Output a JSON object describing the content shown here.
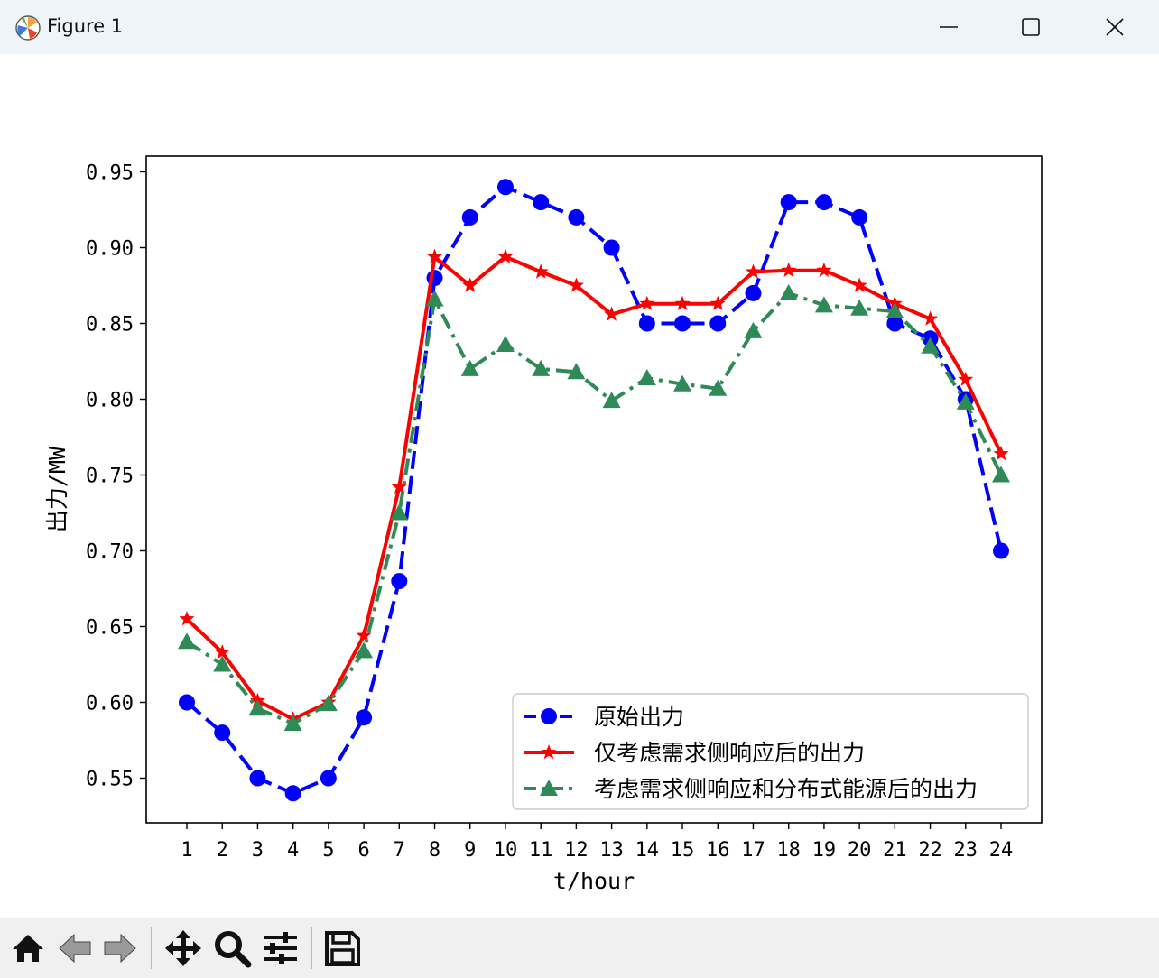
{
  "window": {
    "title": "Figure 1",
    "icons": {
      "app": "matplotlib-icon",
      "minimize": "minimize-icon",
      "maximize": "maximize-icon",
      "close": "close-icon"
    }
  },
  "toolbar": {
    "buttons": [
      "home-icon",
      "back-arrow-icon",
      "forward-arrow-icon",
      "pan-move-icon",
      "zoom-magnifier-icon",
      "configure-subplots-icon",
      "save-disk-icon"
    ]
  },
  "chart_data": {
    "type": "line",
    "xlabel": "t/hour",
    "ylabel": "出力/MW",
    "x": [
      1,
      2,
      3,
      4,
      5,
      6,
      7,
      8,
      9,
      10,
      11,
      12,
      13,
      14,
      15,
      16,
      17,
      18,
      19,
      20,
      21,
      22,
      23,
      24
    ],
    "xticks": [
      "1",
      "2",
      "3",
      "4",
      "5",
      "6",
      "7",
      "8",
      "9",
      "10",
      "11",
      "12",
      "13",
      "14",
      "15",
      "16",
      "17",
      "18",
      "19",
      "20",
      "21",
      "22",
      "23",
      "24"
    ],
    "ylim": [
      0.52,
      0.96
    ],
    "yticks": [
      "0.55",
      "0.60",
      "0.65",
      "0.70",
      "0.75",
      "0.80",
      "0.85",
      "0.90",
      "0.95"
    ],
    "yticks_values": [
      0.55,
      0.6,
      0.65,
      0.7,
      0.75,
      0.8,
      0.85,
      0.9,
      0.95
    ],
    "grid": false,
    "legend_position": "lower-right",
    "series": [
      {
        "name": "原始出力",
        "color": "#0000ff",
        "linestyle": "dashed",
        "marker": "circle",
        "values": [
          0.6,
          0.58,
          0.55,
          0.54,
          0.55,
          0.59,
          0.68,
          0.88,
          0.92,
          0.94,
          0.93,
          0.92,
          0.9,
          0.85,
          0.85,
          0.85,
          0.87,
          0.93,
          0.93,
          0.92,
          0.85,
          0.84,
          0.8,
          0.7
        ]
      },
      {
        "name": "仅考虑需求侧响应后的出力",
        "color": "#ff0000",
        "linestyle": "solid",
        "marker": "star",
        "values": [
          0.655,
          0.633,
          0.601,
          0.589,
          0.6,
          0.644,
          0.742,
          0.894,
          0.875,
          0.894,
          0.884,
          0.875,
          0.856,
          0.863,
          0.863,
          0.863,
          0.884,
          0.885,
          0.885,
          0.875,
          0.863,
          0.853,
          0.813,
          0.764
        ]
      },
      {
        "name": "考虑需求侧响应和分布式能源后的出力",
        "color": "#2e8b57",
        "linestyle": "dashdot",
        "marker": "triangle",
        "values": [
          0.64,
          0.625,
          0.596,
          0.586,
          0.599,
          0.634,
          0.725,
          0.866,
          0.82,
          0.836,
          0.82,
          0.818,
          0.799,
          0.814,
          0.81,
          0.807,
          0.845,
          0.87,
          0.862,
          0.86,
          0.858,
          0.835,
          0.798,
          0.75
        ]
      }
    ]
  }
}
